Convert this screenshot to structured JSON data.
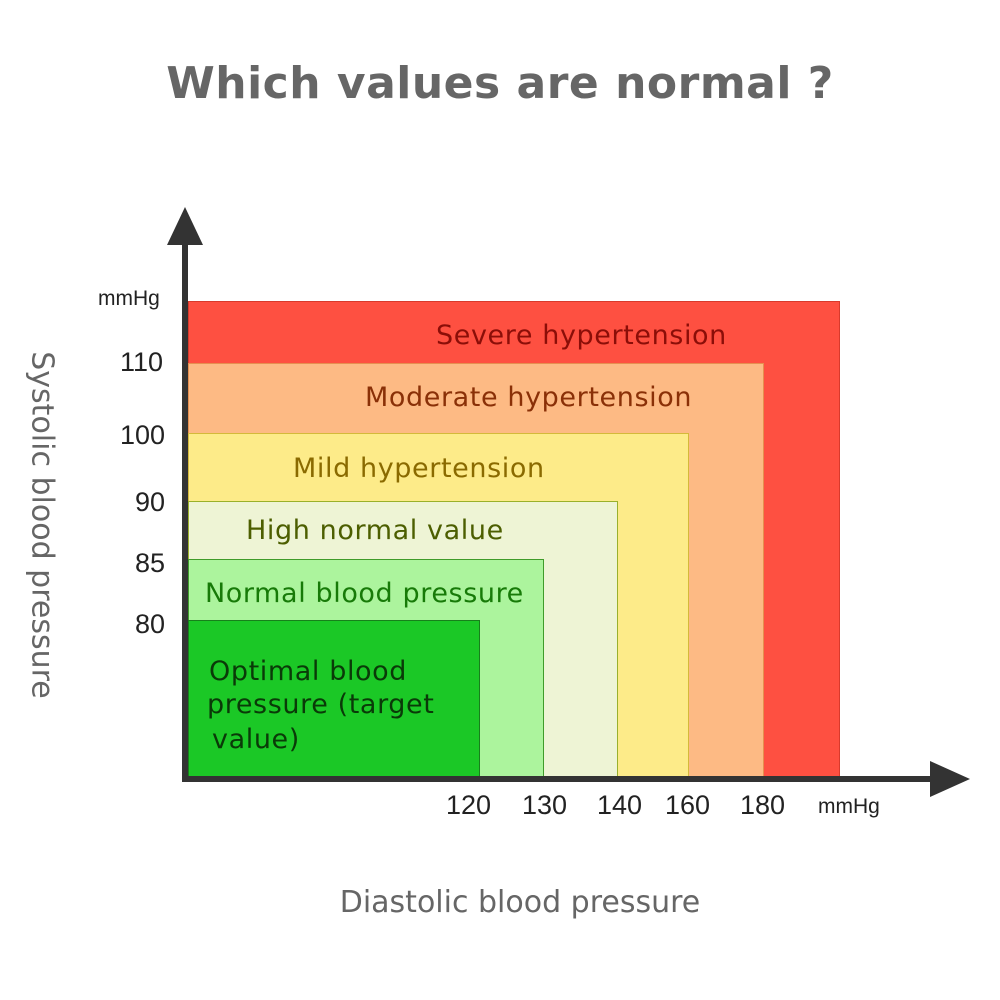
{
  "title": "Which values are normal ?",
  "y_axis": {
    "label": "Systolic blood pressure",
    "unit": "mmHg",
    "ticks": [
      "110",
      "100",
      "90",
      "85",
      "80"
    ]
  },
  "x_axis": {
    "label": "Diastolic blood pressure",
    "unit": "mmHg",
    "ticks": [
      "120",
      "130",
      "140",
      "160",
      "180"
    ]
  },
  "zones": [
    {
      "name": "Severe hypertension",
      "color": "#fe5041",
      "text_color": "#8b0e08"
    },
    {
      "name": "Moderate hypertension",
      "color": "#fdba84",
      "text_color": "#8a3007"
    },
    {
      "name": "Mild hypertension",
      "color": "#fdeb89",
      "text_color": "#8a6a00"
    },
    {
      "name": "High normal value",
      "color": "#eef4d5",
      "text_color": "#4c5e00"
    },
    {
      "name": "Normal blood pressure",
      "color": "#acf49d",
      "text_color": "#177a08"
    },
    {
      "name": "Optimal blood pressure (target value)",
      "line1": "Optimal blood",
      "line2": "pressure (target",
      "line3": "value)",
      "color": "#1bc826",
      "text_color": "#0a3a08"
    }
  ]
}
